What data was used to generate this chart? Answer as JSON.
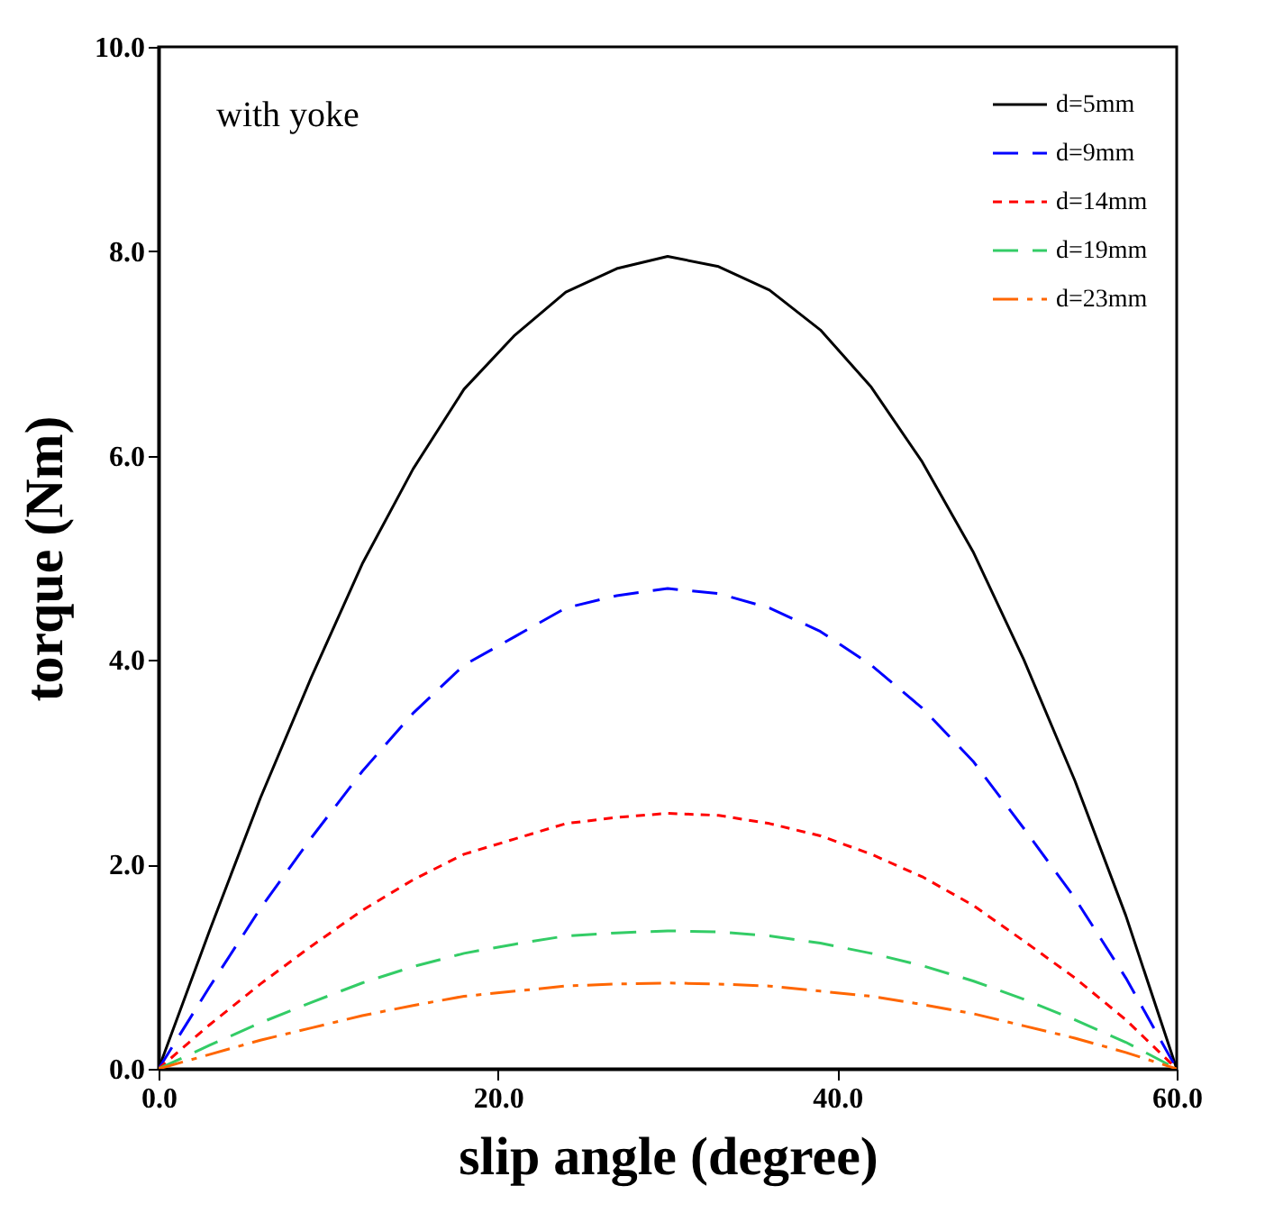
{
  "chart_data": {
    "type": "line",
    "xlabel": "slip angle (degree)",
    "ylabel": "torque (Nm)",
    "annotations": [
      "with yoke"
    ],
    "x": [
      0,
      3,
      6,
      9,
      12,
      15,
      18,
      21,
      24,
      27,
      30,
      33,
      36,
      39,
      42,
      45,
      48,
      51,
      54,
      57,
      60
    ],
    "xlim": [
      0,
      60
    ],
    "xticks": [
      {
        "value": 0,
        "label": "0.0"
      },
      {
        "value": 20,
        "label": "20.0"
      },
      {
        "value": 40,
        "label": "40.0"
      },
      {
        "value": 60,
        "label": "60.0"
      }
    ],
    "ylim": [
      0,
      10
    ],
    "yticks": [
      {
        "value": 0,
        "label": "0.0"
      },
      {
        "value": 2,
        "label": "2.0"
      },
      {
        "value": 4,
        "label": "4.0"
      },
      {
        "value": 6,
        "label": "6.0"
      },
      {
        "value": 8,
        "label": "8.0"
      },
      {
        "value": 10,
        "label": "10.0"
      }
    ],
    "grid": false,
    "legend": "top right",
    "marker": "none",
    "series": [
      {
        "name": "d=5mm",
        "color": "#000000",
        "line_style": "solid",
        "values": [
          0,
          1.35,
          2.65,
          3.83,
          4.94,
          5.87,
          6.65,
          7.18,
          7.6,
          7.83,
          7.95,
          7.85,
          7.62,
          7.23,
          6.67,
          5.94,
          5.06,
          4.0,
          2.82,
          1.5,
          0
        ]
      },
      {
        "name": "d=9mm",
        "color": "#0000ff",
        "line_style": "dashed",
        "values": [
          0,
          0.8,
          1.57,
          2.26,
          2.91,
          3.48,
          3.95,
          4.23,
          4.51,
          4.63,
          4.7,
          4.65,
          4.51,
          4.28,
          3.95,
          3.53,
          3.01,
          2.35,
          1.67,
          0.89,
          0
        ]
      },
      {
        "name": "d=14mm",
        "color": "#ff0000",
        "line_style": "dotted",
        "values": [
          0,
          0.43,
          0.83,
          1.2,
          1.55,
          1.85,
          2.1,
          2.25,
          2.4,
          2.46,
          2.5,
          2.48,
          2.4,
          2.28,
          2.1,
          1.88,
          1.6,
          1.25,
          0.89,
          0.48,
          0
        ]
      },
      {
        "name": "d=19mm",
        "color": "#33cc66",
        "line_style": "dashed",
        "values": [
          0,
          0.23,
          0.45,
          0.65,
          0.84,
          1.0,
          1.13,
          1.22,
          1.3,
          1.33,
          1.35,
          1.34,
          1.3,
          1.23,
          1.13,
          1.01,
          0.86,
          0.68,
          0.48,
          0.26,
          0
        ]
      },
      {
        "name": "d=23mm",
        "color": "#ff6600",
        "line_style": "dashdot",
        "values": [
          0,
          0.14,
          0.28,
          0.4,
          0.52,
          0.62,
          0.71,
          0.76,
          0.81,
          0.83,
          0.84,
          0.83,
          0.81,
          0.76,
          0.71,
          0.63,
          0.54,
          0.42,
          0.3,
          0.16,
          0
        ]
      }
    ]
  }
}
